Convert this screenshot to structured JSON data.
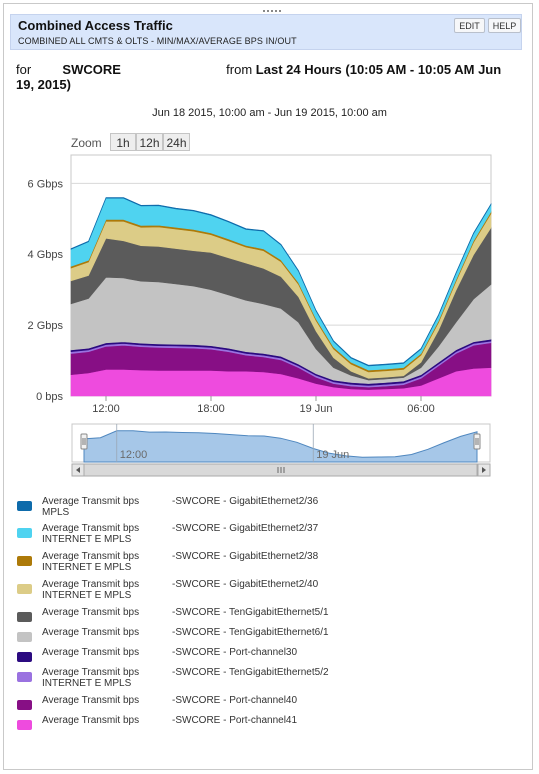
{
  "header": {
    "title": "Combined Access Traffic",
    "subtitle": "COMBINED ALL CMTS & OLTS - MIN/MAX/AVERAGE BPS IN/OUT",
    "edit_label": "EDIT",
    "help_label": "HELP"
  },
  "filter": {
    "for_label": "for",
    "device": "SWCORE",
    "from_label": "from",
    "period": "Last 24 Hours (10:05 AM - 10:05 AM Jun 19, 2015)"
  },
  "range_label": "Jun 18 2015, 10:00 am - Jun 19 2015, 10:00 am",
  "zoom": {
    "label": "Zoom",
    "buttons": [
      "1h",
      "12h",
      "24h"
    ]
  },
  "navigator": {
    "tick_labels": [
      "12:00",
      "19 Jun"
    ]
  },
  "colors": {
    "grid": "#d8d8d8",
    "navigator_fill": "#a6c7e8",
    "navigator_line": "#4f87bf"
  },
  "chart_data": {
    "type": "area",
    "stacked": true,
    "y_unit": "bps",
    "ylim": [
      0,
      6800000000
    ],
    "yticks": [
      {
        "value": 0,
        "label": "0 bps"
      },
      {
        "value": 2000000000,
        "label": "2 Gbps"
      },
      {
        "value": 4000000000,
        "label": "4 Gbps"
      },
      {
        "value": 6000000000,
        "label": "6 Gbps"
      }
    ],
    "x_hours": [
      0,
      1,
      2,
      3,
      4,
      5,
      6,
      7,
      8,
      9,
      10,
      11,
      12,
      13,
      14,
      15,
      16,
      17,
      18,
      19,
      20,
      21,
      22,
      23,
      24
    ],
    "x_range_hours": [
      0,
      24
    ],
    "xticks": [
      {
        "hour": 2,
        "label": "12:00"
      },
      {
        "hour": 8,
        "label": "18:00"
      },
      {
        "hour": 14,
        "label": "19 Jun"
      },
      {
        "hour": 20,
        "label": "06:00"
      }
    ],
    "series": [
      {
        "name": "Average Transmit bps",
        "label2": "MPLS",
        "source": "-SWCORE - GigabitEthernet2/36",
        "color": "#0e6bab",
        "values": [
          0.02,
          0.02,
          0.02,
          0.02,
          0.02,
          0.02,
          0.02,
          0.02,
          0.02,
          0.02,
          0.02,
          0.02,
          0.02,
          0.02,
          0.02,
          0.02,
          0.02,
          0.02,
          0.02,
          0.02,
          0.02,
          0.02,
          0.02,
          0.02,
          0.02
        ]
      },
      {
        "name": "Average Transmit bps",
        "label2": "INTERNET E MPLS",
        "source": "-SWCORE - GigabitEthernet2/37",
        "color": "#4fd3f0",
        "values": [
          0.48,
          0.52,
          0.6,
          0.6,
          0.55,
          0.55,
          0.52,
          0.52,
          0.5,
          0.48,
          0.45,
          0.5,
          0.42,
          0.32,
          0.22,
          0.16,
          0.12,
          0.12,
          0.12,
          0.12,
          0.12,
          0.15,
          0.18,
          0.2,
          0.2
        ]
      },
      {
        "name": "Average Transmit bps",
        "label2": "INTERNET E MPLS",
        "source": "-SWCORE - GigabitEthernet2/38",
        "color": "#ad7a09",
        "values": [
          0.05,
          0.05,
          0.05,
          0.05,
          0.05,
          0.05,
          0.05,
          0.05,
          0.05,
          0.05,
          0.05,
          0.05,
          0.05,
          0.05,
          0.05,
          0.05,
          0.05,
          0.05,
          0.05,
          0.05,
          0.05,
          0.05,
          0.05,
          0.05,
          0.05
        ]
      },
      {
        "name": "Average Transmit bps",
        "label2": "INTERNET E MPLS",
        "source": "-SWCORE - GigabitEthernet2/40",
        "color": "#dccc87",
        "values": [
          0.36,
          0.38,
          0.48,
          0.55,
          0.52,
          0.55,
          0.55,
          0.55,
          0.5,
          0.48,
          0.45,
          0.5,
          0.42,
          0.35,
          0.3,
          0.25,
          0.2,
          0.18,
          0.18,
          0.18,
          0.2,
          0.22,
          0.25,
          0.35,
          0.4
        ]
      },
      {
        "name": "Average Transmit bps",
        "label2": "",
        "source": "-SWCORE - TenGigabitEthernet5/1",
        "color": "#5b5b5b",
        "values": [
          0.65,
          0.65,
          1.1,
          1.05,
          1.0,
          1.0,
          1.0,
          1.0,
          1.05,
          1.05,
          1.05,
          1.0,
          0.9,
          0.72,
          0.5,
          0.28,
          0.12,
          0.05,
          0.05,
          0.05,
          0.15,
          0.45,
          0.9,
          1.25,
          1.6
        ]
      },
      {
        "name": "Average Transmit bps",
        "label2": "",
        "source": "-SWCORE - TenGigabitEthernet6/1",
        "color": "#c3c3c3",
        "values": [
          1.3,
          1.4,
          1.85,
          1.8,
          1.75,
          1.75,
          1.7,
          1.65,
          1.58,
          1.5,
          1.45,
          1.4,
          1.35,
          1.18,
          0.7,
          0.35,
          0.2,
          0.1,
          0.1,
          0.1,
          0.2,
          0.45,
          0.78,
          1.2,
          1.55
        ]
      },
      {
        "name": "Average Transmit bps",
        "label2": "",
        "source": "-SWCORE - Port-channel30",
        "color": "#2b0a80",
        "values": [
          0.05,
          0.05,
          0.05,
          0.05,
          0.05,
          0.05,
          0.05,
          0.05,
          0.05,
          0.05,
          0.05,
          0.05,
          0.05,
          0.05,
          0.05,
          0.05,
          0.05,
          0.05,
          0.05,
          0.05,
          0.05,
          0.05,
          0.05,
          0.05,
          0.05
        ]
      },
      {
        "name": "Average Transmit bps",
        "label2": "INTERNET E MPLS",
        "source": "-SWCORE - TenGigabitEthernet5/2",
        "color": "#9a72e0",
        "values": [
          0.05,
          0.05,
          0.05,
          0.05,
          0.05,
          0.05,
          0.05,
          0.05,
          0.05,
          0.05,
          0.05,
          0.05,
          0.05,
          0.05,
          0.05,
          0.05,
          0.05,
          0.05,
          0.05,
          0.05,
          0.05,
          0.05,
          0.05,
          0.05,
          0.05
        ]
      },
      {
        "name": "Average Transmit bps",
        "label2": "",
        "source": "-SWCORE - Port-channel40",
        "color": "#870f85",
        "values": [
          0.6,
          0.6,
          0.65,
          0.68,
          0.66,
          0.65,
          0.64,
          0.63,
          0.6,
          0.55,
          0.45,
          0.42,
          0.4,
          0.3,
          0.18,
          0.1,
          0.08,
          0.07,
          0.08,
          0.1,
          0.2,
          0.35,
          0.5,
          0.65,
          0.7
        ]
      },
      {
        "name": "Average Transmit bps",
        "label2": "",
        "source": "-SWCORE - Port-channel41",
        "color": "#ee4bde",
        "values": [
          0.6,
          0.65,
          0.75,
          0.75,
          0.73,
          0.72,
          0.72,
          0.72,
          0.72,
          0.7,
          0.7,
          0.68,
          0.62,
          0.5,
          0.35,
          0.25,
          0.2,
          0.18,
          0.2,
          0.22,
          0.3,
          0.5,
          0.7,
          0.78,
          0.8
        ]
      }
    ],
    "values_unit_note": "values in Gbps"
  }
}
